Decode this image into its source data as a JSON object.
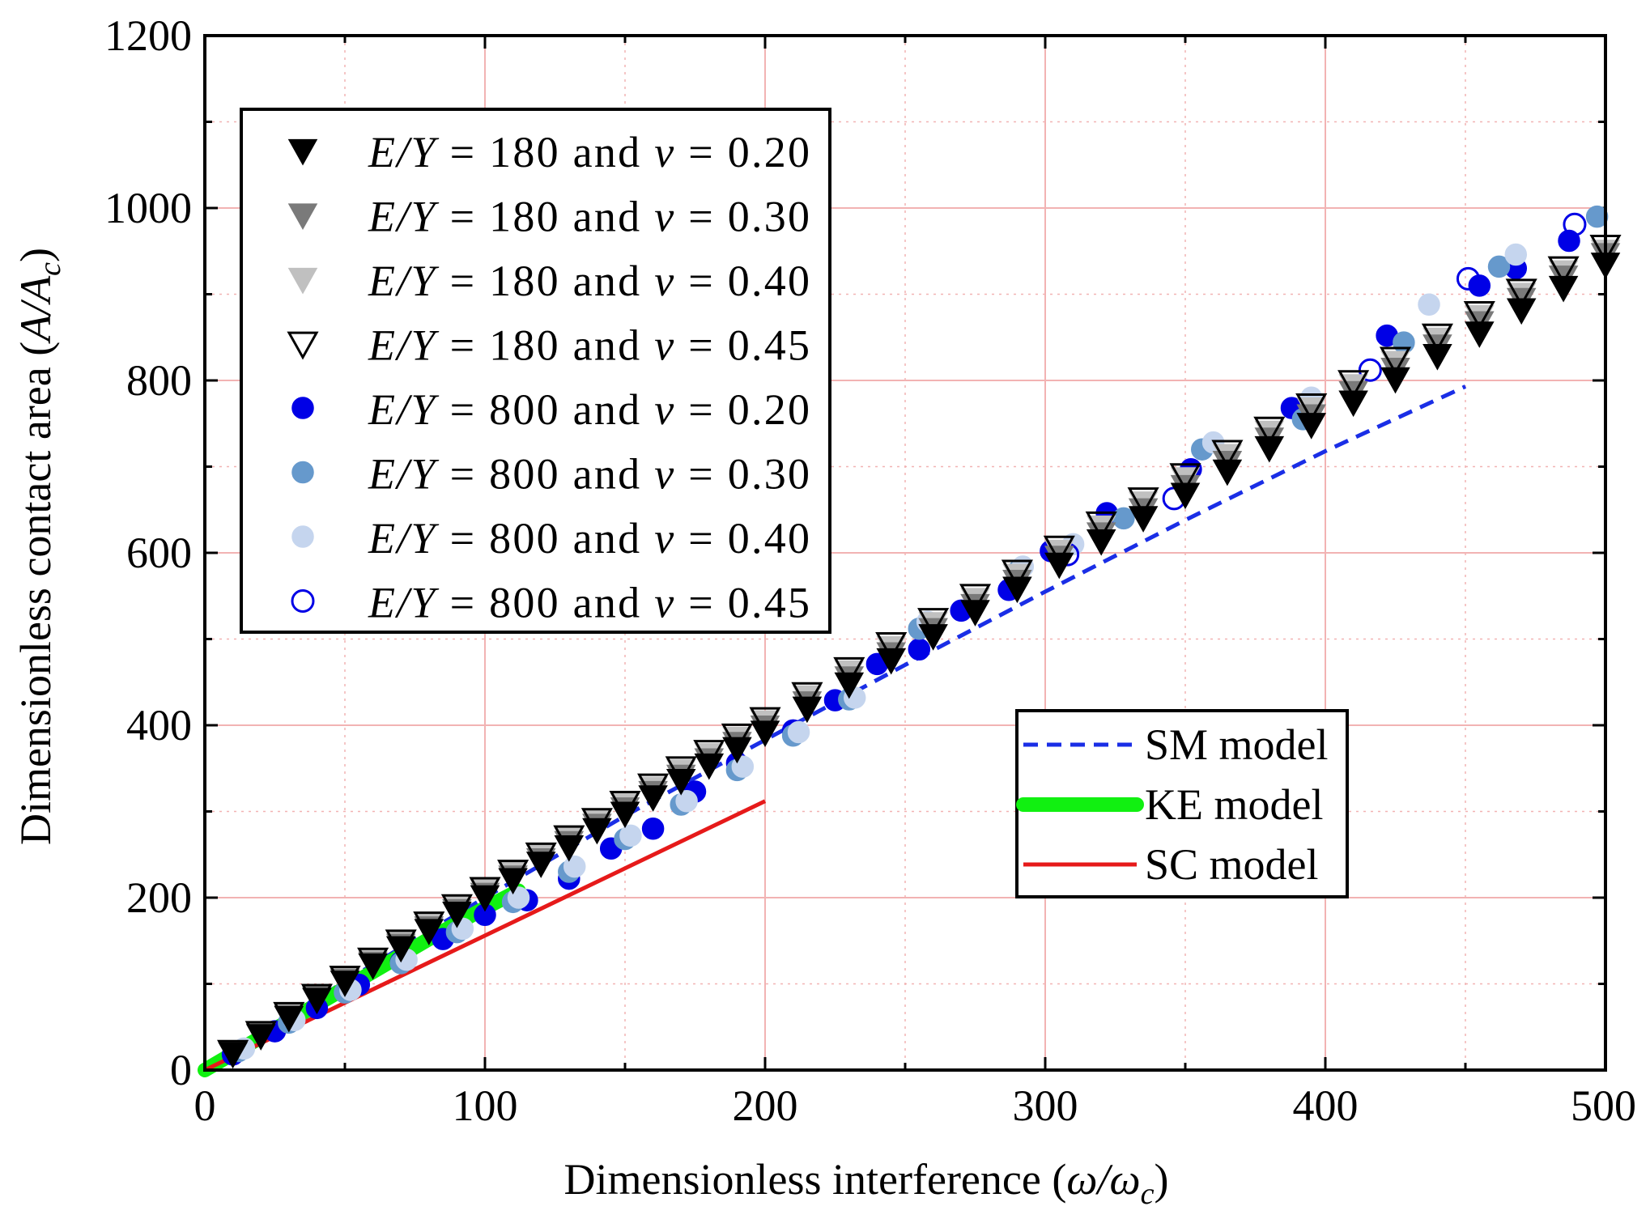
{
  "chart_data": {
    "type": "scatter",
    "xlabel": {
      "main": "Dimensionless interference (",
      "var": "ω/ω",
      "sub": "c",
      "close": ")"
    },
    "ylabel": {
      "main": "Dimensionless contact area (",
      "var": "A/A",
      "sub": "c",
      "close": ")"
    },
    "xlim": [
      0,
      500
    ],
    "ylim": [
      0,
      1200
    ],
    "xticks": [
      "0",
      "100",
      "200",
      "300",
      "400",
      "500"
    ],
    "yticks": [
      "0",
      "200",
      "400",
      "600",
      "800",
      "1000",
      "1200"
    ],
    "grid": true,
    "legend_position": "top-left",
    "legend_model_position": "bottom-right",
    "series": [
      {
        "name": "E/Y = 180 and ν = 0.20",
        "ey": "180",
        "nu": "0.20",
        "marker": "triangle-down",
        "fill": "#000000",
        "stroke": "#000000",
        "x": [
          10,
          20,
          30,
          40,
          50,
          60,
          70,
          80,
          90,
          100,
          110,
          120,
          130,
          140,
          150,
          160,
          170,
          180,
          190,
          200,
          215,
          230,
          245,
          260,
          275,
          290,
          305,
          320,
          335,
          350,
          365,
          380,
          395,
          410,
          425,
          440,
          455,
          470,
          485,
          500
        ],
        "y": [
          19,
          40,
          61,
          82,
          102,
          122,
          142,
          162,
          182,
          201,
          221,
          240,
          259,
          279,
          298,
          317,
          336,
          354,
          373,
          392,
          420,
          448,
          476,
          504,
          532,
          559,
          587,
          614,
          641,
          668,
          695,
          722,
          749,
          775,
          802,
          829,
          855,
          882,
          908,
          935
        ]
      },
      {
        "name": "E/Y = 180 and ν = 0.30",
        "ey": "180",
        "nu": "0.30",
        "marker": "triangle-down",
        "fill": "#7a7a7a",
        "stroke": "#7a7a7a",
        "x": [
          10,
          20,
          30,
          40,
          50,
          60,
          70,
          80,
          90,
          100,
          110,
          120,
          130,
          140,
          150,
          160,
          170,
          180,
          190,
          200,
          215,
          230,
          245,
          260,
          275,
          290,
          305,
          320,
          335,
          350,
          365,
          380,
          395,
          410,
          425,
          440,
          455,
          470,
          485,
          500
        ],
        "y": [
          20,
          41,
          62,
          84,
          104,
          124,
          145,
          165,
          185,
          204,
          224,
          244,
          264,
          284,
          303,
          322,
          341,
          360,
          379,
          398,
          426,
          455,
          483,
          511,
          539,
          567,
          595,
          622,
          650,
          677,
          705,
          732,
          759,
          786,
          813,
          840,
          867,
          894,
          920,
          946
        ]
      },
      {
        "name": "E/Y = 180 and ν = 0.40",
        "ey": "180",
        "nu": "0.40",
        "marker": "triangle-down",
        "fill": "#c0c0c0",
        "stroke": "#c0c0c0",
        "x": [
          10,
          20,
          30,
          40,
          50,
          60,
          70,
          80,
          90,
          100,
          110,
          120,
          130,
          140,
          150,
          160,
          170,
          180,
          190,
          200,
          215,
          230,
          245,
          260,
          275,
          290,
          305,
          320,
          335,
          350,
          365,
          380,
          395,
          410,
          425,
          440,
          455,
          470,
          485,
          500
        ],
        "y": [
          20,
          42,
          64,
          85,
          106,
          127,
          148,
          168,
          188,
          208,
          228,
          248,
          268,
          288,
          308,
          327,
          347,
          366,
          385,
          404,
          433,
          462,
          490,
          518,
          546,
          574,
          602,
          630,
          658,
          686,
          713,
          740,
          767,
          794,
          821,
          848,
          874,
          900,
          926,
          950
        ]
      },
      {
        "name": "E/Y = 180 and ν = 0.45",
        "ey": "180",
        "nu": "0.45",
        "marker": "triangle-down",
        "fill": "none",
        "stroke": "#000000",
        "x": [
          10,
          20,
          30,
          40,
          50,
          60,
          70,
          80,
          90,
          100,
          110,
          120,
          130,
          140,
          150,
          160,
          170,
          180,
          190,
          200,
          215,
          230,
          245,
          260,
          275,
          290,
          305,
          320,
          335,
          350,
          365,
          380,
          395,
          410,
          425,
          440,
          455,
          470,
          485,
          500
        ],
        "y": [
          21,
          43,
          65,
          86,
          107,
          128,
          149,
          170,
          190,
          210,
          230,
          250,
          270,
          290,
          310,
          330,
          350,
          369,
          388,
          407,
          436,
          465,
          494,
          522,
          550,
          578,
          606,
          634,
          662,
          690,
          717,
          744,
          771,
          798,
          825,
          852,
          878,
          904,
          930,
          955
        ]
      },
      {
        "name": "E/Y = 800 and ν = 0.20",
        "ey": "800",
        "nu": "0.20",
        "marker": "circle",
        "fill": "#0000e6",
        "stroke": "#0000e6",
        "x": [
          10,
          25,
          40,
          55,
          70,
          85,
          100,
          115,
          130,
          145,
          160,
          175,
          190,
          210,
          225,
          240,
          255,
          270,
          287,
          302,
          322,
          352,
          388,
          422,
          455,
          468,
          487
        ],
        "y": [
          18,
          45,
          72,
          99,
          125,
          152,
          180,
          197,
          222,
          257,
          280,
          323,
          356,
          394,
          429,
          471,
          488,
          533,
          557,
          602,
          646,
          697,
          768,
          852,
          910,
          930,
          962
        ]
      },
      {
        "name": "E/Y = 800 and ν = 0.30",
        "ey": "800",
        "nu": "0.30",
        "marker": "circle",
        "fill": "#6699cc",
        "stroke": "#6699cc",
        "x": [
          12,
          30,
          50,
          70,
          90,
          110,
          130,
          150,
          170,
          190,
          210,
          230,
          255,
          290,
          328,
          356,
          392,
          428,
          462,
          497
        ],
        "y": [
          22,
          55,
          90,
          124,
          160,
          195,
          230,
          268,
          308,
          348,
          388,
          430,
          512,
          578,
          640,
          720,
          755,
          844,
          932,
          990
        ]
      },
      {
        "name": "E/Y = 800 and ν = 0.40",
        "ey": "800",
        "nu": "0.40",
        "marker": "circle",
        "fill": "#c5d5ee",
        "stroke": "#c5d5ee",
        "x": [
          14,
          32,
          52,
          72,
          92,
          112,
          132,
          152,
          172,
          192,
          212,
          232,
          258,
          292,
          310,
          360,
          395,
          437,
          468
        ],
        "y": [
          25,
          58,
          93,
          128,
          164,
          200,
          236,
          272,
          312,
          352,
          392,
          432,
          520,
          584,
          610,
          728,
          780,
          888,
          946
        ]
      },
      {
        "name": "E/Y = 800 and ν = 0.45",
        "ey": "800",
        "nu": "0.45",
        "marker": "circle",
        "fill": "none",
        "stroke": "#0000e6",
        "x": [
          308,
          346,
          416,
          451,
          489
        ],
        "y": [
          598,
          663,
          812,
          918,
          981
        ]
      }
    ],
    "models": [
      {
        "name": "SM model",
        "color": "#1a2ee6",
        "dash": "dashed",
        "x": [
          0,
          50,
          100,
          150,
          200,
          250,
          300,
          350,
          400,
          450
        ],
        "y": [
          0,
          103,
          200,
          295,
          383,
          470,
          555,
          638,
          718,
          793
        ]
      },
      {
        "name": "KE model",
        "color": "#11f011",
        "dash": "solid-thick",
        "x": [
          0,
          20,
          40,
          60,
          80,
          100,
          112
        ],
        "y": [
          0,
          38,
          76,
          114,
          152,
          188,
          208
        ]
      },
      {
        "name": "SC model",
        "color": "#e61a1a",
        "dash": "solid",
        "x": [
          0,
          50,
          100,
          150,
          200
        ],
        "y": [
          0,
          78,
          156,
          234,
          312
        ]
      }
    ]
  }
}
